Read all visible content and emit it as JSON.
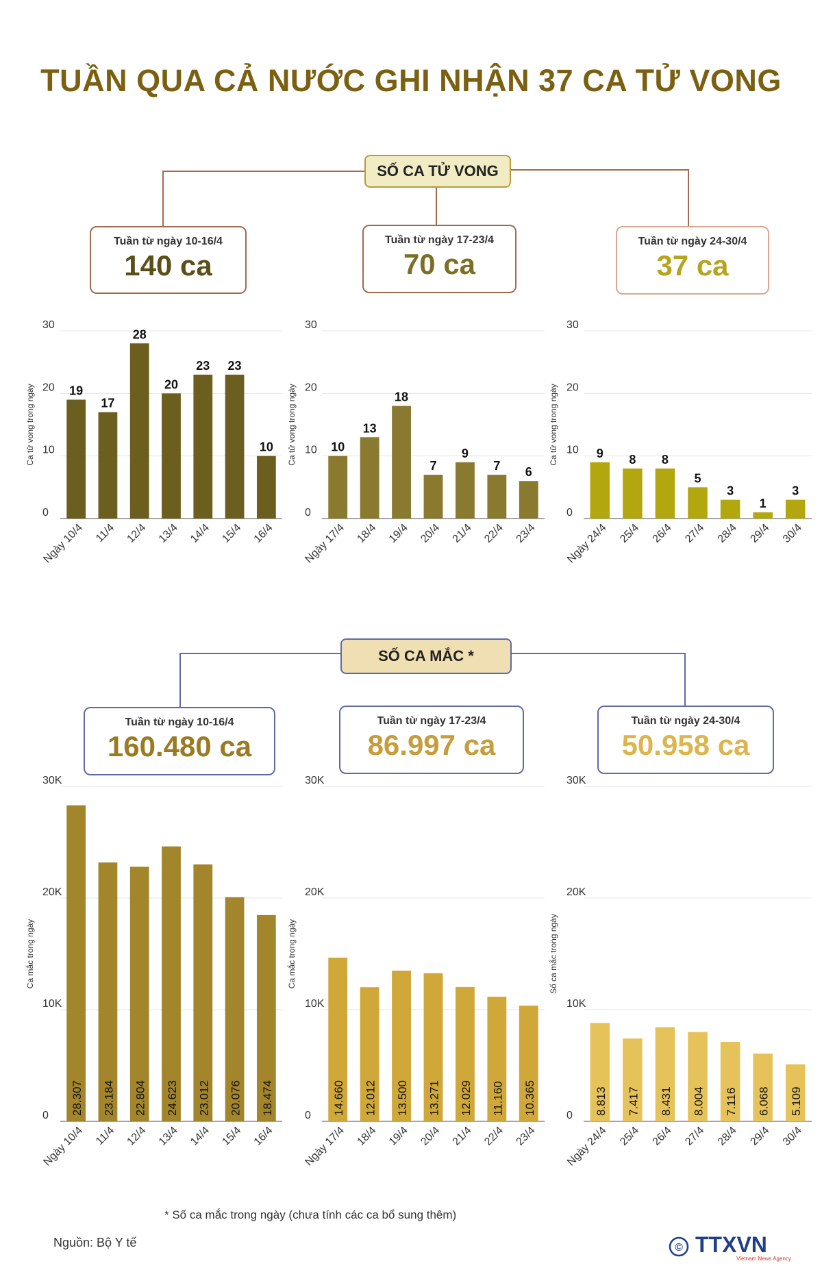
{
  "title": "TUẦN QUA CẢ NƯỚC GHI NHẬN 37 CA TỬ VONG",
  "deaths_section": {
    "label": "SỐ CA TỬ VONG",
    "weeks": [
      {
        "label": "Tuần từ ngày 10-16/4",
        "total": "140 ca",
        "color": "#6b5e1e"
      },
      {
        "label": "Tuần từ ngày 17-23/4",
        "total": "70 ca",
        "color": "#8a7a30"
      },
      {
        "label": "Tuần từ ngày 24-30/4",
        "total": "37 ca",
        "color": "#b3a322"
      }
    ]
  },
  "cases_section": {
    "label": "SỐ CA MẮC *",
    "weeks": [
      {
        "label": "Tuần từ ngày 10-16/4",
        "total": "160.480 ca",
        "color": "#9f7d25"
      },
      {
        "label": "Tuần từ ngày 17-23/4",
        "total": "86.997 ca",
        "color": "#c99d38"
      },
      {
        "label": "Tuần từ ngày 24-30/4",
        "total": "50.958 ca",
        "color": "#e2be5a"
      }
    ]
  },
  "chart_data": [
    {
      "type": "bar",
      "categories": [
        "Ngày 10/4",
        "11/4",
        "12/4",
        "13/4",
        "14/4",
        "15/4",
        "16/4"
      ],
      "values": [
        19,
        17,
        28,
        20,
        23,
        23,
        10
      ],
      "data_labels": [
        "19",
        "17",
        "28",
        "20",
        "23",
        "23",
        "10"
      ],
      "ylabel": "Ca tử vong trong ngày",
      "ylim": [
        0,
        30
      ],
      "yticks": [
        "0",
        "10",
        "20",
        "30"
      ],
      "color": "#6b5e1e",
      "grid": true
    },
    {
      "type": "bar",
      "categories": [
        "Ngày 17/4",
        "18/4",
        "19/4",
        "20/4",
        "21/4",
        "22/4",
        "23/4"
      ],
      "values": [
        10,
        13,
        18,
        7,
        9,
        7,
        6
      ],
      "data_labels": [
        "10",
        "13",
        "18",
        "7",
        "9",
        "7",
        "6"
      ],
      "ylabel": "Ca tử vong trong ngày",
      "ylim": [
        0,
        30
      ],
      "yticks": [
        "0",
        "10",
        "20",
        "30"
      ],
      "color": "#8a7a30",
      "grid": true
    },
    {
      "type": "bar",
      "categories": [
        "Ngày 24/4",
        "25/4",
        "26/4",
        "27/4",
        "28/4",
        "29/4",
        "30/4"
      ],
      "values": [
        9,
        8,
        8,
        5,
        3,
        1,
        3
      ],
      "data_labels": [
        "9",
        "8",
        "8",
        "5",
        "3",
        "1",
        "3"
      ],
      "ylabel": "Ca tử vong trong ngày",
      "ylim": [
        0,
        30
      ],
      "yticks": [
        "0",
        "10",
        "20",
        "30"
      ],
      "color": "#b3a70f",
      "grid": true
    },
    {
      "type": "bar",
      "categories": [
        "Ngày 10/4",
        "11/4",
        "12/4",
        "13/4",
        "14/4",
        "15/4",
        "16/4"
      ],
      "values": [
        28307,
        23184,
        22804,
        24623,
        23012,
        20076,
        18474
      ],
      "data_labels": [
        "28.307",
        "23.184",
        "22.804",
        "24.623",
        "23.012",
        "20.076",
        "18.474"
      ],
      "ylabel": "Ca mắc trong ngày",
      "ylim": [
        0,
        30000
      ],
      "yticks": [
        "0",
        "10K",
        "20K",
        "30K"
      ],
      "color": "#a3862c",
      "grid": true
    },
    {
      "type": "bar",
      "categories": [
        "Ngày 17/4",
        "18/4",
        "19/4",
        "20/4",
        "21/4",
        "22/4",
        "23/4"
      ],
      "values": [
        14660,
        12012,
        13500,
        13271,
        12029,
        11160,
        10365
      ],
      "data_labels": [
        "14.660",
        "12.012",
        "13.500",
        "13.271",
        "12.029",
        "11.160",
        "10.365"
      ],
      "ylabel": "Ca mắc trong ngày",
      "ylim": [
        0,
        30000
      ],
      "yticks": [
        "0",
        "10K",
        "20K",
        "30K"
      ],
      "color": "#d0a83a",
      "grid": true
    },
    {
      "type": "bar",
      "categories": [
        "Ngày 24/4",
        "25/4",
        "26/4",
        "27/4",
        "28/4",
        "29/4",
        "30/4"
      ],
      "values": [
        8813,
        7417,
        8431,
        8004,
        7116,
        6068,
        5109
      ],
      "data_labels": [
        "8.813",
        "7.417",
        "8.431",
        "8.004",
        "7.116",
        "6.068",
        "5.109"
      ],
      "ylabel": "Số ca mắc trong ngày",
      "ylim": [
        0,
        30000
      ],
      "yticks": [
        "0",
        "10K",
        "20K",
        "30K"
      ],
      "color": "#e6c25a",
      "grid": true
    }
  ],
  "footnote": "* Số ca mắc trong ngày (chưa tính các ca bổ sung thêm)",
  "source": "Nguồn: Bộ Y tế",
  "logo": {
    "copyright": "©",
    "brand": "TTXVN",
    "tagline": "Vietnam News Agency"
  }
}
